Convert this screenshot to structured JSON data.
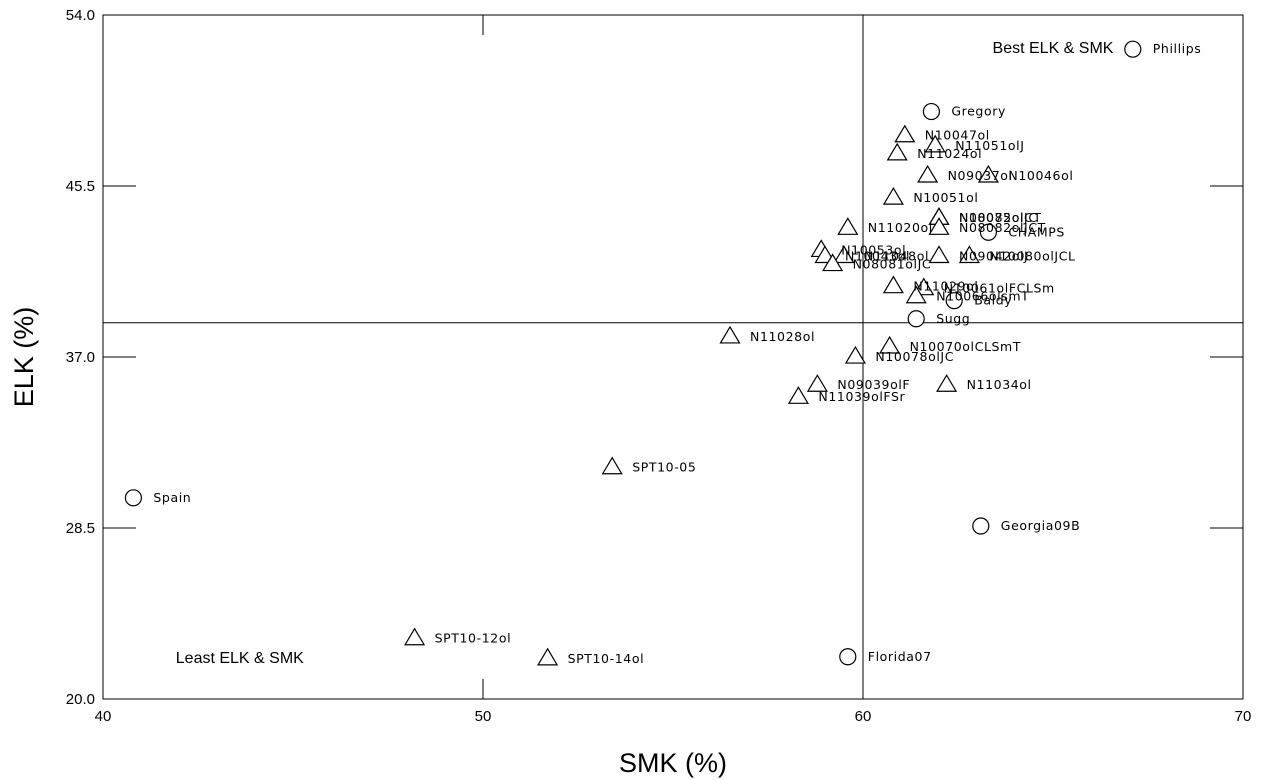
{
  "chart_data": {
    "type": "scatter",
    "xlabel": "SMK (%)",
    "ylabel": "ELK (%)",
    "xlim": [
      40,
      70
    ],
    "ylim": [
      20.0,
      54.0
    ],
    "xticks": [
      "40",
      "50",
      "60",
      "70"
    ],
    "yticks": [
      "20.0",
      "28.5",
      "37.0",
      "45.5",
      "54.0"
    ],
    "reference_lines": {
      "x": 60.0,
      "y": 38.7
    },
    "annotations": [
      {
        "text": "Best ELK & SMK",
        "x": 65.0,
        "y": 52.4
      },
      {
        "text": "Least ELK & SMK",
        "x": 43.6,
        "y": 22.1
      }
    ],
    "series": [
      {
        "marker": "circle",
        "points": [
          {
            "label": "Phillips",
            "x": 67.1,
            "y": 52.3
          },
          {
            "label": "Gregory",
            "x": 61.8,
            "y": 49.2
          },
          {
            "label": "CHAMPS",
            "x": 63.3,
            "y": 43.2
          },
          {
            "label": "Baldy",
            "x": 62.4,
            "y": 39.8
          },
          {
            "label": "Sugg",
            "x": 61.4,
            "y": 38.9
          },
          {
            "label": "Georgia09B",
            "x": 63.1,
            "y": 28.6
          },
          {
            "label": "Florida07",
            "x": 59.6,
            "y": 22.1
          },
          {
            "label": "Spain",
            "x": 40.8,
            "y": 30.0
          }
        ]
      },
      {
        "marker": "triangle",
        "points": [
          {
            "label": "N10047ol",
            "x": 61.1,
            "y": 48.0
          },
          {
            "label": "N11051olJ",
            "x": 61.9,
            "y": 47.5
          },
          {
            "label": "N11024ol",
            "x": 60.9,
            "y": 47.1
          },
          {
            "label": "N09037ol",
            "x": 61.7,
            "y": 46.0
          },
          {
            "label": "N10046ol",
            "x": 63.3,
            "y": 46.0
          },
          {
            "label": "N10051ol",
            "x": 60.8,
            "y": 44.9
          },
          {
            "label": "N08075olCT",
            "x": 62.0,
            "y": 43.9
          },
          {
            "label": "N10082olJC",
            "x": 62.0,
            "y": 43.9
          },
          {
            "label": "N08082olJCT",
            "x": 62.0,
            "y": 43.4
          },
          {
            "label": "N11020ol",
            "x": 59.6,
            "y": 43.4
          },
          {
            "label": "N10053ol",
            "x": 58.9,
            "y": 42.3
          },
          {
            "label": "N10043ol",
            "x": 59.0,
            "y": 42.0
          },
          {
            "label": "N11048ol",
            "x": 59.5,
            "y": 42.0
          },
          {
            "label": "N09042olJ",
            "x": 62.0,
            "y": 42.0
          },
          {
            "label": "N10080olJCL",
            "x": 62.8,
            "y": 42.0
          },
          {
            "label": "N08081olJC",
            "x": 59.2,
            "y": 41.6
          },
          {
            "label": "N11029ol",
            "x": 60.8,
            "y": 40.5
          },
          {
            "label": "N10061olFCLSm",
            "x": 61.6,
            "y": 40.4
          },
          {
            "label": "N10066olsmT",
            "x": 61.4,
            "y": 40.0
          },
          {
            "label": "N11028ol",
            "x": 56.5,
            "y": 38.0
          },
          {
            "label": "N10070olCLSmT",
            "x": 60.7,
            "y": 37.5
          },
          {
            "label": "N10078olJC",
            "x": 59.8,
            "y": 37.0
          },
          {
            "label": "N09039olF",
            "x": 58.8,
            "y": 35.6
          },
          {
            "label": "N11039olFSr",
            "x": 58.3,
            "y": 35.0
          },
          {
            "label": "N11034ol",
            "x": 62.2,
            "y": 35.6
          },
          {
            "label": "SPT10-05",
            "x": 53.4,
            "y": 31.5
          },
          {
            "label": "SPT10-12ol",
            "x": 48.2,
            "y": 23.0
          },
          {
            "label": "SPT10-14ol",
            "x": 51.7,
            "y": 22.0
          }
        ]
      }
    ]
  }
}
